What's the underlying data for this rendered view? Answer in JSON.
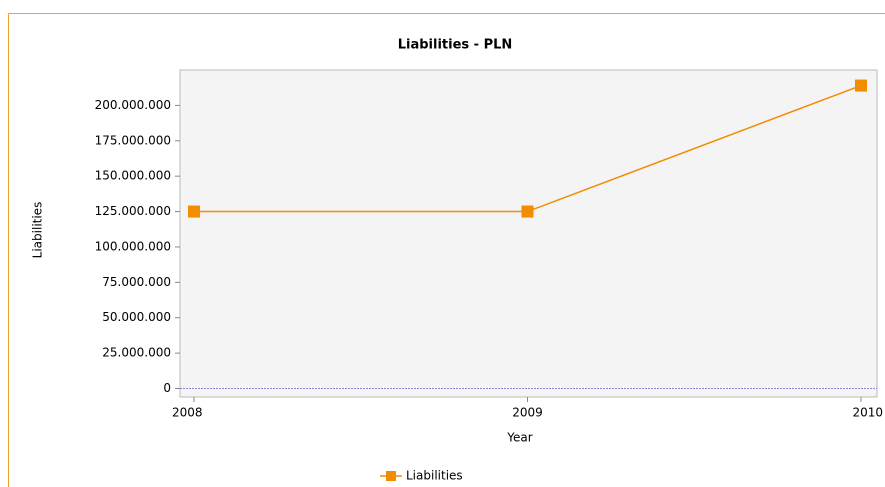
{
  "chart_data": {
    "type": "line",
    "title": "Liabilities - PLN",
    "x_label": "Year",
    "y_label": "Liabilities",
    "x": [
      2008,
      2009,
      2010
    ],
    "xlim": [
      2008,
      2010
    ],
    "xticks": [
      2008,
      2009,
      2010
    ],
    "series": [
      {
        "name": "Liabilities",
        "color": "#f28c00",
        "values": [
          125000000,
          125000000,
          214000000
        ]
      }
    ],
    "ylim": [
      -6000000,
      225000000
    ],
    "yticks": [
      0,
      {
        "value": 25000000,
        "label": "25.000.000"
      },
      {
        "value": 50000000,
        "label": "50.000.000"
      },
      {
        "value": 75000000,
        "label": "75.000.000"
      },
      {
        "value": 100000000,
        "label": "100.000.000"
      },
      {
        "value": 125000000,
        "label": "125.000.000"
      },
      {
        "value": 150000000,
        "label": "150.000.000"
      },
      {
        "value": 175000000,
        "label": "175.000.000"
      },
      {
        "value": 200000000,
        "label": "200.000.000"
      }
    ],
    "legend": "bottom"
  }
}
